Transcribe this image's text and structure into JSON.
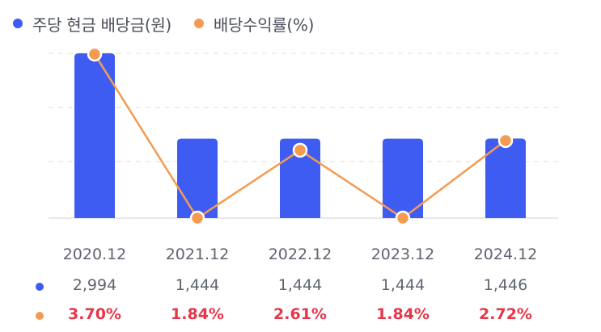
{
  "legend": {
    "bar": {
      "label": "주당 현금 배당금(원)",
      "color": "#3e5cf2"
    },
    "line": {
      "label": "배당수익률(%)",
      "color": "#f59b51"
    }
  },
  "colors": {
    "bar": "#3e5cf2",
    "line": "#f59b51",
    "yield_text": "#e5364a",
    "grid": "#e6e8ec"
  },
  "chart_data": {
    "type": "bar",
    "categories": [
      "2020.12",
      "2021.12",
      "2022.12",
      "2023.12",
      "2024.12"
    ],
    "series": [
      {
        "name": "주당 현금 배당금(원)",
        "type": "bar",
        "values": [
          2994,
          1444,
          1444,
          1444,
          1446
        ],
        "labels": [
          "2,994",
          "1,444",
          "1,444",
          "1,444",
          "1,446"
        ]
      },
      {
        "name": "배당수익률(%)",
        "type": "line",
        "values": [
          3.7,
          1.84,
          2.61,
          1.84,
          2.72
        ],
        "labels": [
          "3.70%",
          "1.84%",
          "2.61%",
          "1.84%",
          "2.72%"
        ]
      }
    ],
    "grid": true,
    "legend_position": "top-left"
  }
}
